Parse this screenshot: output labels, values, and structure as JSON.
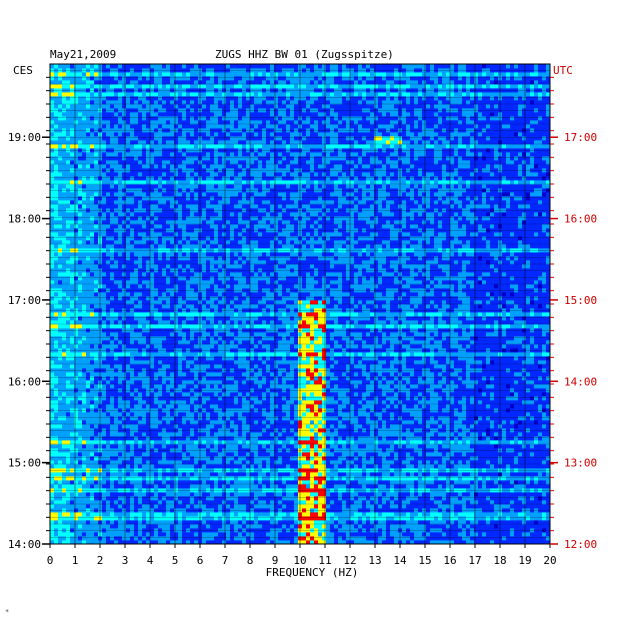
{
  "header": {
    "date": "May21,2009",
    "station": "ZUGS HHZ BW 01 (Zugsspitze)",
    "left_tz": "CES",
    "right_tz": "UTC"
  },
  "chart_data": {
    "type": "heatmap",
    "title": "ZUGS HHZ BW 01 (Zugsspitze)",
    "date": "May21,2009",
    "xlabel": "FREQUENCY (HZ)",
    "xlim": [
      0,
      20
    ],
    "x_ticks": [
      "0",
      "1",
      "2",
      "3",
      "4",
      "5",
      "6",
      "7",
      "8",
      "9",
      "10",
      "11",
      "12",
      "13",
      "14",
      "15",
      "16",
      "17",
      "18",
      "19",
      "20"
    ],
    "y_left_label": "CES",
    "y_right_label": "UTC",
    "y_left_ticks": [
      "19:00",
      "18:00",
      "17:00",
      "16:00",
      "15:00",
      "14:00"
    ],
    "y_right_ticks": [
      "17:00",
      "16:00",
      "15:00",
      "14:00",
      "13:00",
      "12:00"
    ],
    "ylim_hours_ces": [
      14.0,
      19.9
    ],
    "colormap": [
      "#0000c8",
      "#0028ff",
      "#00a0ff",
      "#00ffff",
      "#ffff00",
      "#ff0000"
    ],
    "features": [
      {
        "desc": "persistent energy band",
        "freq_hz": [
          10.0,
          11.0
        ],
        "time_ces": [
          "14:00",
          "17:00"
        ],
        "level": "high"
      },
      {
        "desc": "broadband low-frequency noise",
        "freq_hz": [
          0.0,
          2.0
        ],
        "time_ces": [
          "14:00",
          "19:54"
        ],
        "level": "medium"
      },
      {
        "desc": "burst",
        "freq_hz": [
          13.0,
          14.0
        ],
        "time_ces": [
          "18:55",
          "19:00"
        ],
        "level": "high"
      }
    ],
    "tick_colors": {
      "left": "#000000",
      "right": "#cc0000"
    }
  }
}
